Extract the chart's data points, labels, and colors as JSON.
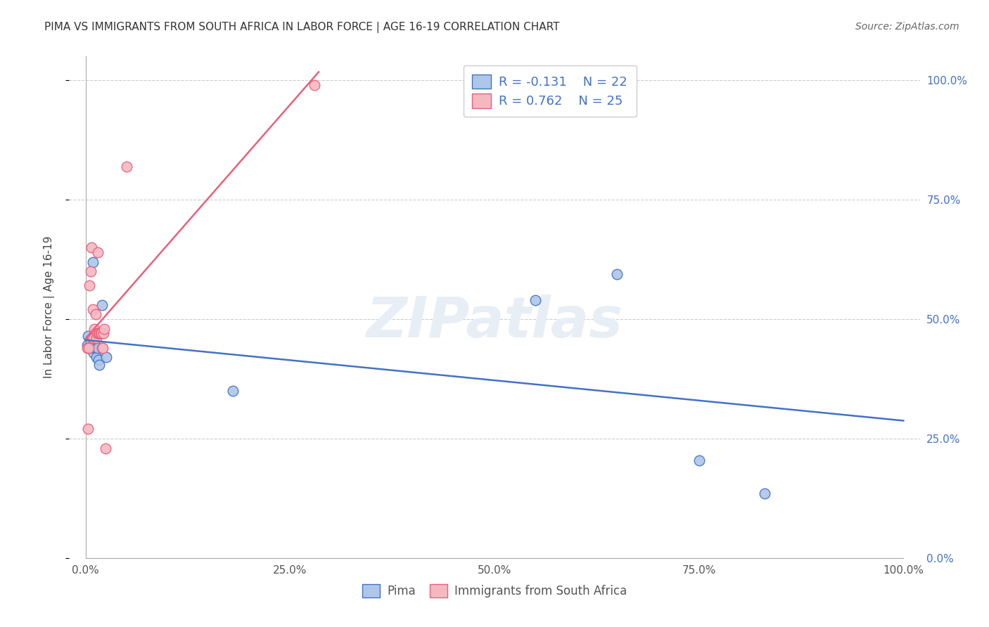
{
  "title": "PIMA VS IMMIGRANTS FROM SOUTH AFRICA IN LABOR FORCE | AGE 16-19 CORRELATION CHART",
  "source": "Source: ZipAtlas.com",
  "ylabel": "In Labor Force | Age 16-19",
  "watermark": "ZIPatlas",
  "legend_pima": "Pima",
  "legend_immigrants": "Immigrants from South Africa",
  "R_pima": -0.131,
  "N_pima": 22,
  "R_immigrants": 0.762,
  "N_immigrants": 25,
  "pima_x": [
    0.002,
    0.003,
    0.004,
    0.005,
    0.006,
    0.007,
    0.008,
    0.009,
    0.01,
    0.011,
    0.012,
    0.013,
    0.015,
    0.016,
    0.017,
    0.02,
    0.025,
    0.18,
    0.55,
    0.65,
    0.75,
    0.83
  ],
  "pima_y": [
    0.445,
    0.465,
    0.44,
    0.44,
    0.455,
    0.44,
    0.44,
    0.62,
    0.43,
    0.44,
    0.44,
    0.42,
    0.44,
    0.415,
    0.405,
    0.53,
    0.42,
    0.35,
    0.54,
    0.595,
    0.205,
    0.135
  ],
  "immigrants_x": [
    0.002,
    0.003,
    0.004,
    0.005,
    0.006,
    0.007,
    0.008,
    0.009,
    0.01,
    0.011,
    0.012,
    0.013,
    0.014,
    0.015,
    0.016,
    0.017,
    0.018,
    0.019,
    0.02,
    0.021,
    0.022,
    0.023,
    0.024,
    0.05,
    0.28
  ],
  "immigrants_y": [
    0.44,
    0.27,
    0.44,
    0.57,
    0.6,
    0.65,
    0.46,
    0.52,
    0.46,
    0.48,
    0.51,
    0.46,
    0.47,
    0.64,
    0.47,
    0.47,
    0.47,
    0.47,
    0.44,
    0.44,
    0.47,
    0.48,
    0.23,
    0.82,
    0.99
  ],
  "xlim": [
    -0.02,
    1.02
  ],
  "ylim": [
    0.0,
    1.05
  ],
  "xticks": [
    0.0,
    0.25,
    0.5,
    0.75,
    1.0
  ],
  "xticklabels": [
    "0.0%",
    "25.0%",
    "50.0%",
    "75.0%",
    "100.0%"
  ],
  "yticks": [
    0.0,
    0.25,
    0.5,
    0.75,
    1.0
  ],
  "yticklabels_right": [
    "0.0%",
    "25.0%",
    "50.0%",
    "75.0%",
    "100.0%"
  ],
  "pima_color": "#aec6e8",
  "immigrants_color": "#f4b8c1",
  "pima_line_color": "#4472c4",
  "immigrants_line_color": "#e8607a",
  "background_color": "#ffffff",
  "grid_color": "#cccccc",
  "title_color": "#333333",
  "legend_text_color": "#4472c4",
  "marker_size": 110
}
